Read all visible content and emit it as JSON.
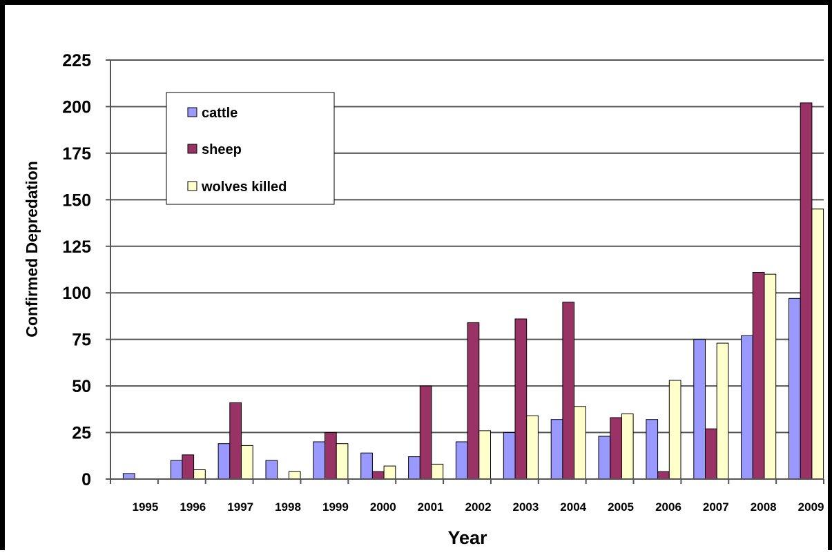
{
  "chart_data": {
    "type": "bar",
    "title": "",
    "xlabel": "Year",
    "ylabel": "Confirmed Depredation",
    "ylim": [
      0,
      225
    ],
    "yticks": [
      0,
      25,
      50,
      75,
      100,
      125,
      150,
      175,
      200,
      225
    ],
    "grid": true,
    "legend_position": "top-left",
    "categories": [
      "1995",
      "1996",
      "1997",
      "1998",
      "1999",
      "2000",
      "2001",
      "2002",
      "2003",
      "2004",
      "2005",
      "2006",
      "2007",
      "2008",
      "2009"
    ],
    "series": [
      {
        "name": "cattle",
        "color": "#9999ff",
        "values": [
          3,
          10,
          19,
          10,
          20,
          14,
          12,
          20,
          25,
          32,
          23,
          32,
          75,
          77,
          97
        ]
      },
      {
        "name": "sheep",
        "color": "#993366",
        "values": [
          0,
          13,
          41,
          0,
          25,
          4,
          50,
          84,
          86,
          95,
          33,
          4,
          27,
          111,
          202
        ]
      },
      {
        "name": "wolves killed",
        "color": "#ffffcc",
        "values": [
          0,
          5,
          18,
          4,
          19,
          7,
          8,
          26,
          34,
          39,
          35,
          53,
          73,
          110,
          145
        ]
      }
    ]
  }
}
